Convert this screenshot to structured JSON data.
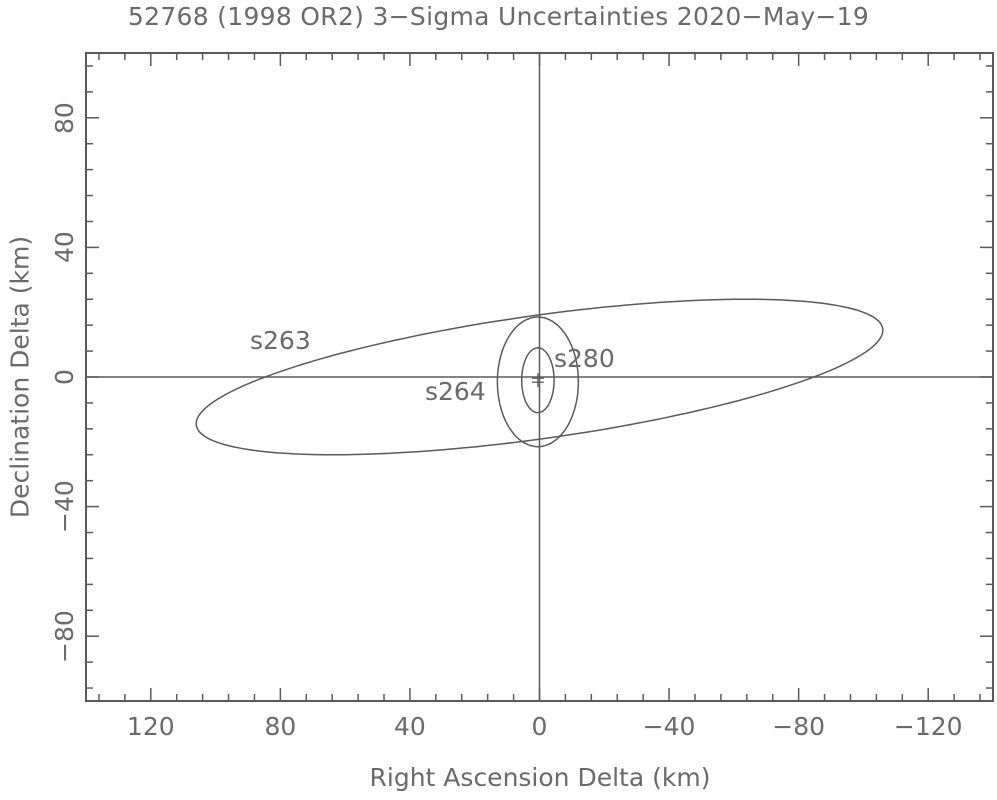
{
  "chart_data": {
    "type": "scatter",
    "title": "52768 (1998 OR2) 3-Sigma Uncertainties 2020-May-19",
    "xlabel": "Right Ascension Delta (km)",
    "ylabel": "Declination Delta (km)",
    "xlim": [
      140,
      -140
    ],
    "ylim": [
      -100,
      100
    ],
    "x_axis_reversed": true,
    "x_major_ticks": [
      120,
      80,
      40,
      0,
      -40,
      -80,
      -120
    ],
    "x_tick_labels": [
      "120",
      "80",
      "40",
      "0",
      "−40",
      "−80",
      "−120"
    ],
    "x_minor_tick_step": 8,
    "y_major_ticks": [
      80,
      40,
      0,
      -40,
      -80
    ],
    "y_tick_labels": [
      "80",
      "40",
      "0",
      "−40",
      "−80"
    ],
    "y_minor_tick_step": 8,
    "grid": false,
    "zero_lines": true,
    "series": [
      {
        "name": "s263",
        "shape": "ellipse",
        "center": [
          0,
          0
        ],
        "semi_major_km": 107,
        "semi_minor_km": 19,
        "tilt_deg": 8,
        "label_pos": [
          88,
          10
        ]
      },
      {
        "name": "s264",
        "shape": "ellipse",
        "center": [
          0.5,
          -1.5
        ],
        "semi_major_km": 20,
        "semi_minor_km": 12.5,
        "tilt_deg": 90,
        "label_pos": [
          34,
          -6
        ]
      },
      {
        "name": "s280",
        "shape": "ellipse",
        "center": [
          0.5,
          -1
        ],
        "semi_major_km": 10,
        "semi_minor_km": 5,
        "tilt_deg": 90,
        "label_pos": [
          -5,
          4
        ]
      },
      {
        "name": "nominal",
        "shape": "marker",
        "center": [
          0.5,
          -1
        ],
        "marker": "+"
      }
    ],
    "colors": {
      "line": "#5a5a5a",
      "text": "#6a6a6a",
      "background": "#ffffff"
    }
  },
  "labels": {
    "title": "52768 (1998 OR2) 3−Sigma Uncertainties 2020−May−19",
    "xlabel": "Right Ascension Delta (km)",
    "ylabel": "Declination Delta (km)",
    "s263": "s263",
    "s264": "s264",
    "s280": "s280",
    "xticks": [
      "120",
      "80",
      "40",
      "0",
      "−40",
      "−80",
      "−120"
    ],
    "yticks": [
      "80",
      "40",
      "0",
      "−40",
      "−80"
    ]
  }
}
